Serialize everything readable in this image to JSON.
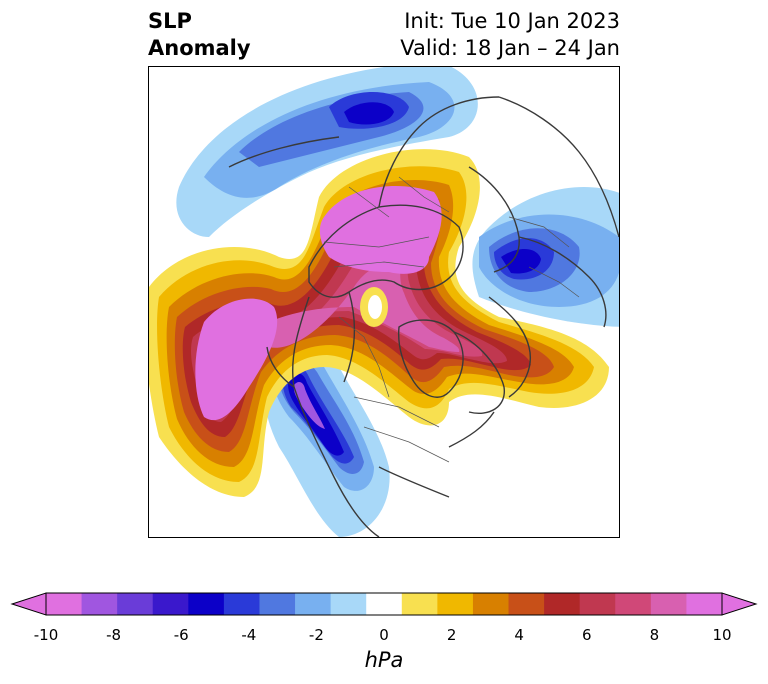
{
  "title": {
    "left_line1": "SLP",
    "left_line2": "Anomaly",
    "right_line1": "Init: Tue 10 Jan 2023",
    "right_line2": "Valid: 18 Jan – 24 Jan"
  },
  "colorbar": {
    "unit": "hPa",
    "ticks": [
      "-10",
      "-8",
      "-6",
      "-4",
      "-2",
      "0",
      "2",
      "4",
      "6",
      "8",
      "10"
    ],
    "levels": [
      -10,
      -9,
      -8,
      -7,
      -6,
      -5,
      -4,
      -3,
      -2,
      -1,
      1,
      2,
      3,
      4,
      5,
      6,
      7,
      8,
      9,
      10
    ],
    "colors": [
      "#e070e0",
      "#a056e0",
      "#6a3cd8",
      "#3a18cc",
      "#0c00c8",
      "#2a3ad8",
      "#5078e0",
      "#78b0f0",
      "#a8d8f8",
      "#ffffff",
      "#f8e050",
      "#f0b800",
      "#d88000",
      "#c85018",
      "#b02828",
      "#c03850",
      "#d04878",
      "#d860b0",
      "#e070e0"
    ],
    "extend": "both"
  },
  "map": {
    "projection": "north-polar-stereographic",
    "field": "SLP anomaly"
  }
}
